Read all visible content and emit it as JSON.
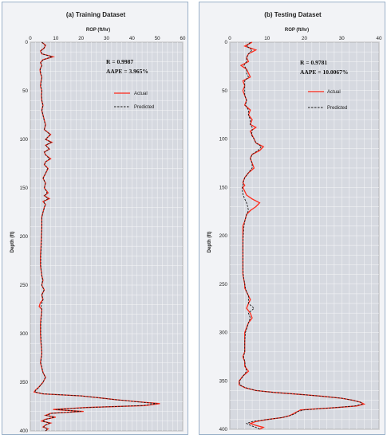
{
  "colors": {
    "actual": "#ff2a1a",
    "predicted": "#1a1a1a",
    "plot_bg": "#d6d9e0",
    "grid": "#f7f7f9"
  },
  "chart_data": [
    {
      "type": "line",
      "title": "(a)  Training Dataset",
      "xlabel": "ROP (ft/hr)",
      "ylabel": "Depth (ft)",
      "xlim": [
        0,
        60
      ],
      "ylim": [
        400,
        0
      ],
      "xticks": [
        "0",
        "10",
        "20",
        "30",
        "40",
        "50",
        "60"
      ],
      "yticks": [
        "0",
        "50",
        "100",
        "150",
        "200",
        "250",
        "300",
        "350",
        "400"
      ],
      "x_axis_position": "top",
      "grid": true,
      "stats": {
        "r": "R = 0.9987",
        "aape": "AAPE = 3.965%"
      },
      "legend": {
        "position": "upper-right",
        "actual": "Actual",
        "predicted": "Predicted"
      },
      "series": [
        {
          "name": "Actual",
          "depth": [
            0,
            3,
            6,
            9,
            12,
            15,
            18,
            21,
            24,
            28,
            32,
            36,
            40,
            45,
            50,
            55,
            60,
            65,
            70,
            75,
            80,
            85,
            90,
            95,
            100,
            103,
            106,
            110,
            113,
            116,
            120,
            123,
            126,
            130,
            135,
            140,
            145,
            150,
            155,
            158,
            161,
            164,
            167,
            170,
            175,
            180,
            190,
            200,
            210,
            220,
            230,
            240,
            245,
            250,
            255,
            260,
            265,
            268,
            272,
            275,
            280,
            290,
            300,
            310,
            320,
            330,
            340,
            345,
            350,
            353,
            356,
            358,
            360,
            362,
            364,
            366,
            368,
            370,
            372,
            374,
            376,
            377,
            378,
            380,
            382,
            384,
            386,
            388,
            390,
            392,
            394,
            396,
            398,
            400
          ],
          "values": [
            4.5,
            6,
            5.5,
            4,
            4.5,
            9,
            5,
            4,
            4.5,
            3.8,
            4,
            4.5,
            4.2,
            4,
            4.5,
            4.3,
            4.5,
            5,
            4.5,
            5,
            5.5,
            6,
            5.5,
            8,
            6,
            8.5,
            6,
            7.5,
            5.5,
            6,
            8,
            6,
            5.5,
            7,
            6,
            5,
            6,
            5.5,
            7,
            5.5,
            7.5,
            5,
            6,
            5.5,
            5,
            4.5,
            4.5,
            4.3,
            4.2,
            4,
            4,
            4.5,
            5,
            4.5,
            5.5,
            4.5,
            5,
            4,
            3.5,
            4.5,
            4.3,
            4,
            4,
            4.2,
            4.5,
            4,
            5,
            6,
            5,
            4,
            3,
            2,
            1.5,
            5,
            20,
            27,
            34,
            42,
            51,
            45,
            22,
            16,
            9,
            21,
            8,
            6,
            10,
            6,
            4.5,
            8,
            6,
            5,
            7,
            6
          ],
          "color": "#ff2a1a"
        },
        {
          "name": "Predicted",
          "depth": [
            0,
            3,
            6,
            9,
            12,
            15,
            18,
            21,
            24,
            28,
            32,
            36,
            40,
            45,
            50,
            55,
            60,
            65,
            70,
            75,
            80,
            85,
            90,
            95,
            100,
            103,
            106,
            110,
            113,
            116,
            120,
            123,
            126,
            130,
            135,
            140,
            145,
            150,
            155,
            158,
            161,
            164,
            167,
            170,
            175,
            180,
            190,
            200,
            210,
            220,
            230,
            240,
            245,
            250,
            255,
            260,
            265,
            268,
            272,
            275,
            280,
            290,
            300,
            310,
            320,
            330,
            340,
            345,
            350,
            353,
            356,
            358,
            360,
            362,
            364,
            366,
            368,
            370,
            372,
            374,
            376,
            377,
            378,
            380,
            382,
            384,
            386,
            388,
            390,
            392,
            394,
            396,
            398,
            400
          ],
          "values": [
            4.6,
            5.8,
            5.4,
            4.1,
            4.6,
            8.6,
            5.1,
            4.1,
            4.5,
            3.9,
            4.1,
            4.5,
            4.3,
            4.1,
            4.5,
            4.4,
            4.6,
            5,
            4.6,
            5,
            5.4,
            5.9,
            5.5,
            7.8,
            6,
            8.2,
            6.1,
            7.4,
            5.6,
            6,
            7.6,
            6.1,
            5.6,
            6.8,
            6,
            5.1,
            5.9,
            5.6,
            6.6,
            5.6,
            7,
            5.2,
            5.9,
            5.6,
            5,
            4.6,
            4.5,
            4.4,
            4.3,
            4.1,
            4.1,
            4.5,
            4.9,
            4.5,
            5.4,
            4.6,
            5,
            4.6,
            4.2,
            4.5,
            4.4,
            4.1,
            4.1,
            4.3,
            4.5,
            4.1,
            5,
            5.9,
            5,
            4.1,
            3.1,
            2.2,
            1.8,
            5.4,
            20,
            27,
            34,
            41.5,
            50,
            44,
            22.5,
            16.5,
            10,
            20,
            8.5,
            6.3,
            9.5,
            6.3,
            4.8,
            7.6,
            6.1,
            5.2,
            6.8,
            6
          ],
          "color": "#1a1a1a"
        }
      ]
    },
    {
      "type": "line",
      "title": "(b)  Testing Dataset",
      "xlabel": "ROP (ft/hr)",
      "ylabel": "Depth (ft)",
      "xlim": [
        0,
        40
      ],
      "ylim": [
        400,
        0
      ],
      "xticks": [
        "0",
        "10",
        "20",
        "30",
        "40"
      ],
      "yticks": [
        "0",
        "50",
        "100",
        "150",
        "200",
        "250",
        "300",
        "350",
        "400"
      ],
      "x_axis_position": "top",
      "grid": true,
      "stats": {
        "r": "R = 0.9781",
        "aape": "AAPE = 10.0067%"
      },
      "legend": {
        "position": "upper-right",
        "actual": "Actual",
        "predicted": "Predicted"
      },
      "series": [
        {
          "name": "Actual",
          "depth": [
            0,
            4,
            8,
            12,
            16,
            20,
            24,
            28,
            32,
            36,
            40,
            45,
            50,
            55,
            60,
            65,
            70,
            75,
            80,
            85,
            88,
            92,
            96,
            100,
            104,
            108,
            112,
            116,
            120,
            125,
            130,
            135,
            140,
            145,
            148,
            150,
            154,
            158,
            162,
            166,
            170,
            174,
            178,
            185,
            190,
            200,
            210,
            220,
            230,
            240,
            250,
            254,
            258,
            262,
            266,
            270,
            275,
            280,
            285,
            290,
            300,
            310,
            320,
            325,
            330,
            335,
            340,
            345,
            350,
            354,
            357,
            360,
            362,
            364,
            366,
            368,
            370,
            372,
            374,
            376,
            378,
            380,
            382,
            384,
            386,
            388,
            390,
            392,
            394,
            396,
            398,
            400
          ],
          "values": [
            6,
            4,
            7,
            5,
            4.5,
            5,
            3,
            4.5,
            5,
            5.5,
            3.5,
            4,
            3.5,
            4,
            4.5,
            4,
            5.5,
            5,
            6,
            5.5,
            7,
            5.5,
            6,
            6.5,
            7,
            9,
            8,
            6,
            5.5,
            6,
            6.5,
            5,
            4,
            3.5,
            4,
            3.5,
            4,
            4.5,
            6,
            8,
            7,
            5.5,
            4.5,
            4,
            3.5,
            3.5,
            3.5,
            3.5,
            3.5,
            3.5,
            4,
            4,
            4.5,
            5,
            5.5,
            5,
            4.5,
            5.5,
            6,
            5,
            4,
            4,
            4,
            3.5,
            4,
            4,
            5,
            3.5,
            2.5,
            2.5,
            4,
            7,
            12,
            19,
            25,
            30,
            33,
            35,
            36,
            34,
            27,
            19,
            18,
            17,
            16,
            14,
            10,
            7,
            5.5,
            7,
            9,
            8
          ],
          "color": "#ff2a1a"
        },
        {
          "name": "Predicted",
          "depth": [
            0,
            4,
            8,
            12,
            16,
            20,
            24,
            28,
            32,
            36,
            40,
            45,
            50,
            55,
            60,
            65,
            70,
            75,
            80,
            85,
            88,
            92,
            96,
            100,
            104,
            108,
            112,
            116,
            120,
            125,
            130,
            135,
            140,
            145,
            148,
            150,
            154,
            158,
            162,
            166,
            170,
            174,
            178,
            185,
            190,
            200,
            210,
            220,
            230,
            240,
            250,
            254,
            258,
            262,
            266,
            270,
            275,
            280,
            285,
            290,
            300,
            310,
            320,
            325,
            330,
            335,
            340,
            345,
            350,
            354,
            357,
            360,
            362,
            364,
            366,
            368,
            370,
            372,
            374,
            376,
            378,
            380,
            382,
            384,
            386,
            388,
            390,
            392,
            394,
            396,
            398,
            400
          ],
          "values": [
            5.5,
            4.5,
            6,
            5,
            4.5,
            4.5,
            3.8,
            4.5,
            4.5,
            5,
            4,
            4,
            4,
            4,
            4.5,
            4.2,
            5,
            5,
            5.5,
            5.5,
            6,
            6,
            5.8,
            6.5,
            7,
            8.5,
            7.5,
            6,
            5.5,
            6,
            6,
            5,
            4,
            3.6,
            3.5,
            3.3,
            3.4,
            3.6,
            4,
            4.5,
            4.8,
            5,
            4.5,
            4,
            3.8,
            3.6,
            3.5,
            3.5,
            3.5,
            3.6,
            4,
            4.2,
            4.5,
            5,
            5,
            5,
            6.5,
            5,
            5.5,
            5,
            4.2,
            4,
            4,
            3.7,
            4,
            4.2,
            4.5,
            3.6,
            2.6,
            2.6,
            4.2,
            7,
            12,
            19,
            25,
            30,
            33,
            35,
            35.5,
            33.5,
            27,
            20,
            18,
            17.5,
            16,
            14,
            10,
            6,
            4.5,
            5.5,
            7,
            8
          ],
          "color": "#1a1a1a"
        }
      ]
    }
  ]
}
